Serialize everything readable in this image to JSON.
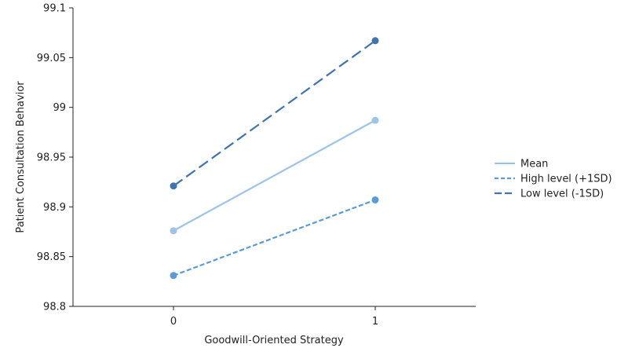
{
  "chart_data": {
    "type": "line",
    "title": "",
    "xlabel": "Goodwill-Oriented Strategy",
    "ylabel": "Patient Consultation Behavior",
    "x": [
      0,
      1
    ],
    "x_tick_labels": [
      "0",
      "1"
    ],
    "ylim": [
      98.8,
      99.1
    ],
    "y_ticks": [
      98.8,
      98.85,
      98.9,
      98.95,
      99,
      99.05,
      99.1
    ],
    "y_tick_labels": [
      "98.8",
      "98.85",
      "98.9",
      "98.95",
      "99",
      "99.05",
      "99.1"
    ],
    "grid": false,
    "legend_position": "right",
    "series": [
      {
        "name": "Mean",
        "values": [
          98.876,
          98.987
        ],
        "color": "#9dc3e6",
        "style": "solid"
      },
      {
        "name": "High level (+1SD)",
        "values": [
          98.831,
          98.907
        ],
        "color": "#5b9bd5",
        "style": "dashed"
      },
      {
        "name": "Low level (-1SD)",
        "values": [
          98.921,
          99.067
        ],
        "color": "#3f74ad",
        "style": "long-dashed"
      }
    ]
  }
}
